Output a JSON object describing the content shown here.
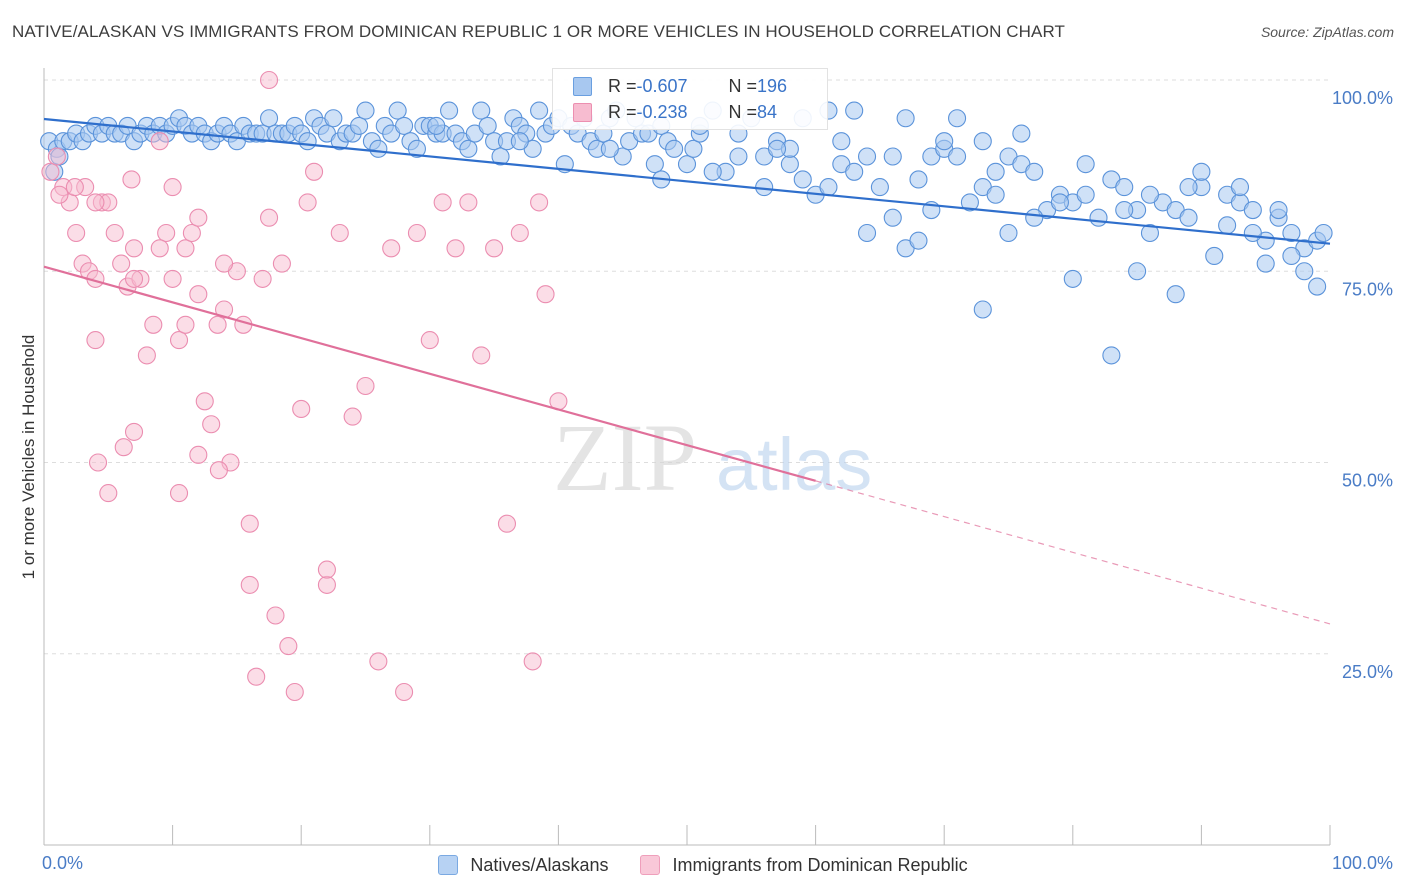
{
  "title": "NATIVE/ALASKAN VS IMMIGRANTS FROM DOMINICAN REPUBLIC 1 OR MORE VEHICLES IN HOUSEHOLD CORRELATION CHART",
  "source": "Source: ZipAtlas.com",
  "watermark": {
    "zip": "ZIP",
    "atlas": "atlas"
  },
  "legend": {
    "series1": {
      "r_label": "R = ",
      "r_value": "-0.607",
      "n_label": "N = ",
      "n_value": "196"
    },
    "series2": {
      "r_label": "R = ",
      "r_value": "-0.238",
      "n_label": "N = ",
      "n_value": "84"
    }
  },
  "bottom_legend": [
    "Natives/Alaskans",
    "Immigrants from Dominican Republic"
  ],
  "colors": {
    "blue_fill": "#a8c8f0",
    "blue_stroke": "#5b93da",
    "blue_line": "#2f6fcc",
    "pink_fill": "#f7bcd0",
    "pink_stroke": "#eb8db0",
    "pink_line": "#e0709a",
    "axis_text": "#4a7cc6",
    "grid": "#dddddd"
  },
  "chart_data": {
    "type": "scatter",
    "title": "NATIVE/ALASKAN VS IMMIGRANTS FROM DOMINICAN REPUBLIC 1 OR MORE VEHICLES IN HOUSEHOLD CORRELATION CHART",
    "xlabel": "",
    "ylabel": "1 or more Vehicles in Household",
    "xlim": [
      0,
      100
    ],
    "ylim": [
      0,
      100
    ],
    "x_tick_labels": [
      "0.0%",
      "100.0%"
    ],
    "y_ticks": [
      25,
      50,
      75,
      100
    ],
    "y_tick_labels": [
      "25.0%",
      "50.0%",
      "75.0%",
      "100.0%"
    ],
    "grid": true,
    "series": [
      {
        "name": "Natives/Alaskans",
        "r": -0.607,
        "n": 196,
        "trend": {
          "x": [
            0,
            100
          ],
          "y": [
            94.9,
            78.6
          ]
        },
        "points": [
          [
            0.4,
            92
          ],
          [
            0.8,
            88
          ],
          [
            1,
            91
          ],
          [
            1.2,
            90
          ],
          [
            1.5,
            92
          ],
          [
            2,
            92
          ],
          [
            2.5,
            93
          ],
          [
            3,
            92
          ],
          [
            3.5,
            93
          ],
          [
            4,
            94
          ],
          [
            4.5,
            93
          ],
          [
            5,
            94
          ],
          [
            5.5,
            93
          ],
          [
            6,
            93
          ],
          [
            6.5,
            94
          ],
          [
            7,
            92
          ],
          [
            7.5,
            93
          ],
          [
            8,
            94
          ],
          [
            8.5,
            93
          ],
          [
            9,
            94
          ],
          [
            9.5,
            93
          ],
          [
            10,
            94
          ],
          [
            10.5,
            95
          ],
          [
            11,
            94
          ],
          [
            11.5,
            93
          ],
          [
            12,
            94
          ],
          [
            12.5,
            93
          ],
          [
            13,
            92
          ],
          [
            13.5,
            93
          ],
          [
            14,
            94
          ],
          [
            14.5,
            93
          ],
          [
            15,
            92
          ],
          [
            15.5,
            94
          ],
          [
            16,
            93
          ],
          [
            16.5,
            93
          ],
          [
            17,
            93
          ],
          [
            17.5,
            95
          ],
          [
            18,
            93
          ],
          [
            18.5,
            93
          ],
          [
            19,
            93
          ],
          [
            19.5,
            94
          ],
          [
            20,
            93
          ],
          [
            20.5,
            92
          ],
          [
            21,
            95
          ],
          [
            21.5,
            94
          ],
          [
            22,
            93
          ],
          [
            22.5,
            95
          ],
          [
            23,
            92
          ],
          [
            23.5,
            93
          ],
          [
            24,
            93
          ],
          [
            24.5,
            94
          ],
          [
            25,
            96
          ],
          [
            25.5,
            92
          ],
          [
            26,
            91
          ],
          [
            26.5,
            94
          ],
          [
            27,
            93
          ],
          [
            27.5,
            96
          ],
          [
            28,
            94
          ],
          [
            28.5,
            92
          ],
          [
            29,
            91
          ],
          [
            29.5,
            94
          ],
          [
            30,
            94
          ],
          [
            30.5,
            93
          ],
          [
            31,
            93
          ],
          [
            31.5,
            96
          ],
          [
            32,
            93
          ],
          [
            32.5,
            92
          ],
          [
            33,
            91
          ],
          [
            33.5,
            93
          ],
          [
            34,
            96
          ],
          [
            34.5,
            94
          ],
          [
            35,
            92
          ],
          [
            35.5,
            90
          ],
          [
            36,
            92
          ],
          [
            36.5,
            95
          ],
          [
            37,
            94
          ],
          [
            37.5,
            93
          ],
          [
            38,
            91
          ],
          [
            38.5,
            96
          ],
          [
            39,
            93
          ],
          [
            39.5,
            94
          ],
          [
            40,
            95
          ],
          [
            40.5,
            89
          ],
          [
            41,
            94
          ],
          [
            41.5,
            93
          ],
          [
            42,
            95
          ],
          [
            42.5,
            92
          ],
          [
            43,
            91
          ],
          [
            43.5,
            93
          ],
          [
            44,
            95
          ],
          [
            44.5,
            96
          ],
          [
            45,
            90
          ],
          [
            45.5,
            92
          ],
          [
            46,
            95
          ],
          [
            46.5,
            93
          ],
          [
            47,
            93
          ],
          [
            47.5,
            89
          ],
          [
            48,
            94
          ],
          [
            48.5,
            92
          ],
          [
            49,
            91
          ],
          [
            50,
            89
          ],
          [
            50.5,
            91
          ],
          [
            51,
            93
          ],
          [
            52,
            96
          ],
          [
            53,
            88
          ],
          [
            54,
            93
          ],
          [
            55,
            95
          ],
          [
            56,
            90
          ],
          [
            57,
            92
          ],
          [
            58,
            89
          ],
          [
            59,
            87
          ],
          [
            60,
            85
          ],
          [
            61,
            96
          ],
          [
            62,
            89
          ],
          [
            63,
            88
          ],
          [
            64,
            90
          ],
          [
            65,
            86
          ],
          [
            66,
            82
          ],
          [
            67,
            95
          ],
          [
            68,
            87
          ],
          [
            69,
            90
          ],
          [
            70,
            91
          ],
          [
            71,
            90
          ],
          [
            72,
            84
          ],
          [
            73,
            86
          ],
          [
            74,
            88
          ],
          [
            75,
            90
          ],
          [
            76,
            89
          ],
          [
            77,
            88
          ],
          [
            78,
            83
          ],
          [
            79,
            85
          ],
          [
            80,
            84
          ],
          [
            81,
            85
          ],
          [
            82,
            82
          ],
          [
            83,
            87
          ],
          [
            84,
            86
          ],
          [
            85,
            83
          ],
          [
            86,
            80
          ],
          [
            87,
            84
          ],
          [
            88,
            83
          ],
          [
            89,
            82
          ],
          [
            90,
            86
          ],
          [
            91,
            77
          ],
          [
            92,
            85
          ],
          [
            93,
            84
          ],
          [
            94,
            83
          ],
          [
            95,
            79
          ],
          [
            96,
            82
          ],
          [
            97,
            80
          ],
          [
            98,
            78
          ],
          [
            99,
            79
          ],
          [
            99.5,
            80
          ],
          [
            30.5,
            94
          ],
          [
            37,
            92
          ],
          [
            44,
            91
          ],
          [
            52,
            88
          ],
          [
            58,
            91
          ],
          [
            63,
            96
          ],
          [
            69,
            83
          ],
          [
            74,
            85
          ],
          [
            79,
            84
          ],
          [
            84,
            83
          ],
          [
            89,
            86
          ],
          [
            93,
            86
          ],
          [
            96,
            83
          ],
          [
            62,
            92
          ],
          [
            66,
            90
          ],
          [
            71,
            95
          ],
          [
            76,
            93
          ],
          [
            81,
            89
          ],
          [
            86,
            85
          ],
          [
            90,
            88
          ],
          [
            94,
            80
          ],
          [
            56,
            86
          ],
          [
            61,
            86
          ],
          [
            54,
            90
          ],
          [
            48,
            87
          ],
          [
            51,
            94
          ],
          [
            57,
            91
          ],
          [
            59,
            95
          ],
          [
            70,
            92
          ],
          [
            73,
            92
          ],
          [
            77,
            82
          ],
          [
            64,
            80
          ],
          [
            67,
            78
          ],
          [
            68,
            79
          ],
          [
            75,
            80
          ],
          [
            80,
            74
          ],
          [
            85,
            75
          ],
          [
            88,
            72
          ],
          [
            92,
            81
          ],
          [
            97,
            77
          ],
          [
            98,
            75
          ],
          [
            99,
            73
          ],
          [
            95,
            76
          ],
          [
            83,
            64
          ],
          [
            73,
            70
          ]
        ]
      },
      {
        "name": "Immigrants from Dominican Republic",
        "r": -0.238,
        "n": 84,
        "trend": {
          "x": [
            0,
            60
          ],
          "y": [
            75.6,
            47.6
          ]
        },
        "trend_ext": {
          "x": [
            60,
            100
          ],
          "y": [
            47.6,
            28.9
          ]
        },
        "points": [
          [
            0.5,
            88
          ],
          [
            1,
            90
          ],
          [
            1.5,
            86
          ],
          [
            2,
            84
          ],
          [
            2.5,
            80
          ],
          [
            3,
            76
          ],
          [
            3.5,
            75
          ],
          [
            4,
            66
          ],
          [
            4.5,
            84
          ],
          [
            5,
            84
          ],
          [
            5.5,
            80
          ],
          [
            6,
            76
          ],
          [
            6.5,
            73
          ],
          [
            7,
            78
          ],
          [
            7.5,
            74
          ],
          [
            8,
            64
          ],
          [
            8.5,
            68
          ],
          [
            9,
            92
          ],
          [
            9.5,
            80
          ],
          [
            10,
            74
          ],
          [
            10.5,
            66
          ],
          [
            11,
            78
          ],
          [
            11.5,
            80
          ],
          [
            12,
            72
          ],
          [
            12.5,
            58
          ],
          [
            13,
            55
          ],
          [
            13.5,
            68
          ],
          [
            14,
            70
          ],
          [
            14.5,
            50
          ],
          [
            15,
            75
          ],
          [
            15.5,
            68
          ],
          [
            16,
            34
          ],
          [
            16.5,
            22
          ],
          [
            17,
            74
          ],
          [
            17.5,
            82
          ],
          [
            18,
            30
          ],
          [
            18.5,
            76
          ],
          [
            19,
            26
          ],
          [
            19.5,
            20
          ],
          [
            20,
            57
          ],
          [
            20.5,
            84
          ],
          [
            21,
            88
          ],
          [
            22,
            34
          ],
          [
            23,
            80
          ],
          [
            24,
            56
          ],
          [
            25,
            60
          ],
          [
            26,
            24
          ],
          [
            27,
            78
          ],
          [
            28,
            20
          ],
          [
            29,
            80
          ],
          [
            30,
            66
          ],
          [
            31,
            84
          ],
          [
            32,
            78
          ],
          [
            33,
            84
          ],
          [
            34,
            64
          ],
          [
            35,
            78
          ],
          [
            36,
            42
          ],
          [
            37,
            80
          ],
          [
            38,
            24
          ],
          [
            38.5,
            84
          ],
          [
            39,
            72
          ],
          [
            40,
            58
          ],
          [
            4.2,
            50
          ],
          [
            5,
            46
          ],
          [
            6.2,
            52
          ],
          [
            7,
            54
          ],
          [
            10.5,
            46
          ],
          [
            12,
            51
          ],
          [
            13.6,
            49
          ],
          [
            3.2,
            86
          ],
          [
            4,
            84
          ],
          [
            6.8,
            87
          ],
          [
            10,
            86
          ],
          [
            17.5,
            100
          ],
          [
            1.2,
            85
          ],
          [
            2.4,
            86
          ],
          [
            4,
            74
          ],
          [
            7,
            74
          ],
          [
            9,
            78
          ],
          [
            11,
            68
          ],
          [
            12,
            82
          ],
          [
            14,
            76
          ],
          [
            16,
            42
          ],
          [
            22,
            36
          ]
        ]
      }
    ]
  }
}
